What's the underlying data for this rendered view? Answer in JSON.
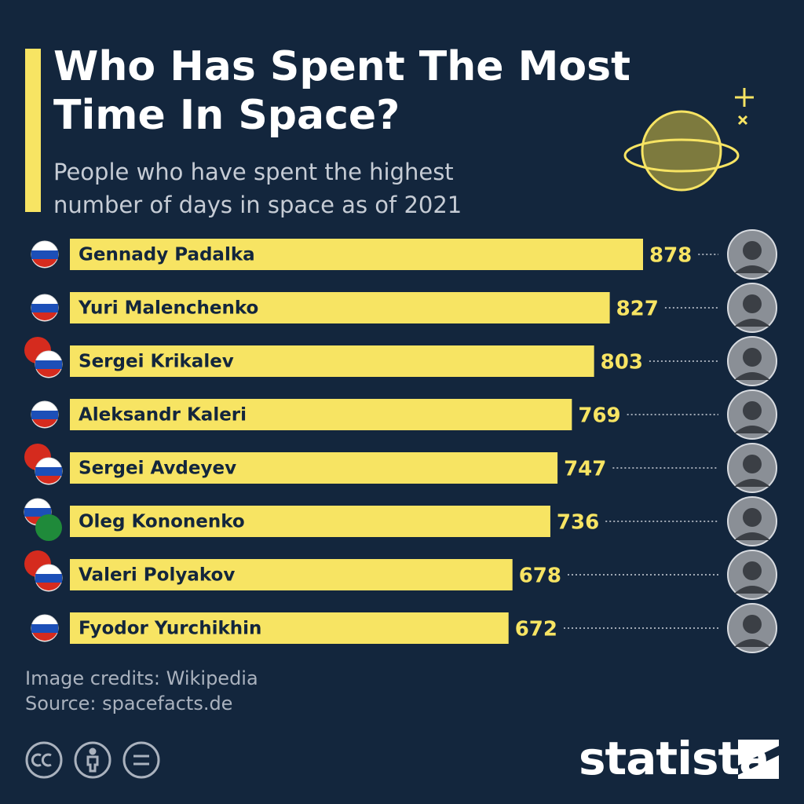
{
  "chart_data": {
    "type": "bar",
    "orientation": "horizontal",
    "title": "Who Has Spent The Most Time In Space?",
    "subtitle": "People who have spent the highest number of days in space as of 2021",
    "categories": [
      "Gennady Padalka",
      "Yuri Malenchenko",
      "Sergei Krikalev",
      "Aleksandr Kaleri",
      "Sergei Avdeyev",
      "Oleg Kononenko",
      "Valeri Polyakov",
      "Fyodor Yurchikhin"
    ],
    "values": [
      878,
      827,
      803,
      769,
      747,
      736,
      678,
      672
    ],
    "color": "#f7e463",
    "credits": "Image credits: Wikipedia",
    "source": "Source: spacefacts.de",
    "brand": "statista"
  }
}
